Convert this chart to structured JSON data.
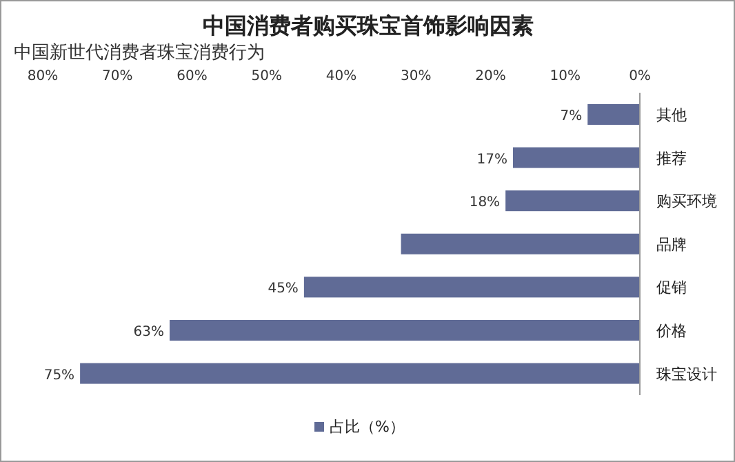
{
  "chart_data": {
    "type": "bar",
    "orientation": "horizontal",
    "title": "中国消费者购买珠宝首饰影响因素",
    "subtitle": "中国新世代消费者珠宝消费行为",
    "categories": [
      "其他",
      "推荐",
      "购买环境",
      "品牌",
      "促销",
      "价格",
      "珠宝设计"
    ],
    "series": [
      {
        "name": "占比（%）",
        "color": "#606b96",
        "values": [
          7,
          17,
          18,
          32,
          45,
          63,
          75
        ],
        "value_labels": [
          "7%",
          "17%",
          "18%",
          null,
          "45%",
          "63%",
          "75%"
        ]
      }
    ],
    "xlim": [
      80,
      0
    ],
    "xticks": [
      {
        "value": 0,
        "label": "0%"
      },
      {
        "value": 10,
        "label": "10%"
      },
      {
        "value": 20,
        "label": "20%"
      },
      {
        "value": 30,
        "label": "30%"
      },
      {
        "value": 40,
        "label": "40%"
      },
      {
        "value": 50,
        "label": "50%"
      },
      {
        "value": 60,
        "label": "60%"
      },
      {
        "value": 70,
        "label": "70%"
      },
      {
        "value": 80,
        "label": "80%"
      }
    ],
    "grid": false,
    "legend": "bottom"
  }
}
